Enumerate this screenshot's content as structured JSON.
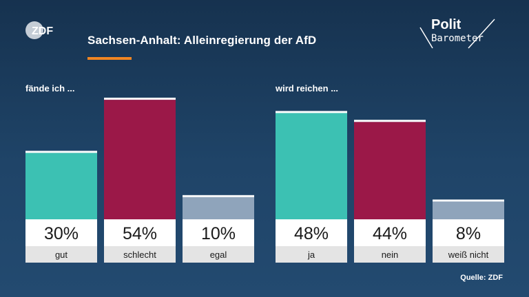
{
  "header": {
    "title": "Sachsen-Anhalt: Alleinregierung der AfD",
    "zdf_logo_text": "ZDF",
    "polit_logo_line1": "Polit",
    "polit_logo_line2": "Barometer"
  },
  "source": "Quelle: ZDF",
  "colors": {
    "positive": "#3cc1b3",
    "negative": "#9b1848",
    "neutral": "#8fa4bb",
    "label_bg": "#ffffff",
    "category_bg": "#e4e4e4",
    "accent": "#f08522"
  },
  "chart_data": {
    "type": "bar",
    "ylim": [
      0,
      60
    ],
    "groups": [
      {
        "label": "fände ich ...",
        "categories": [
          "gut",
          "schlecht",
          "egal"
        ],
        "values": [
          30,
          54,
          10
        ],
        "value_labels": [
          "30%",
          "54%",
          "10%"
        ],
        "colors": [
          "#3cc1b3",
          "#9b1848",
          "#8fa4bb"
        ]
      },
      {
        "label": "wird reichen ...",
        "categories": [
          "ja",
          "nein",
          "weiß nicht"
        ],
        "values": [
          48,
          44,
          8
        ],
        "value_labels": [
          "48%",
          "44%",
          "8%"
        ],
        "colors": [
          "#3cc1b3",
          "#9b1848",
          "#8fa4bb"
        ]
      }
    ]
  }
}
